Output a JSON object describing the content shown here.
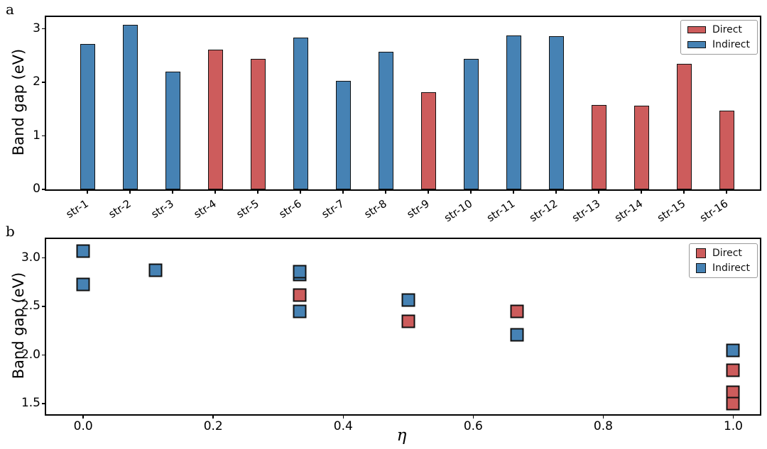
{
  "figure": {
    "panel_letters": {
      "a": "a",
      "b": "b"
    },
    "colors": {
      "direct": "#cd5c5c",
      "indirect": "#4682b4",
      "edge": "#111111"
    },
    "legend": {
      "direct": "Direct",
      "indirect": "Indirect"
    }
  },
  "chart_data": [
    {
      "id": "a",
      "type": "bar",
      "title": "",
      "xlabel": "",
      "ylabel": "Band gap (eV)",
      "categories": [
        "str-1",
        "str-2",
        "str-3",
        "str-4",
        "str-5",
        "str-6",
        "str-7",
        "str-8",
        "str-9",
        "str-10",
        "str-11",
        "str-12",
        "str-13",
        "str-14",
        "str-15",
        "str-16"
      ],
      "values": [
        2.72,
        3.07,
        2.2,
        2.61,
        2.44,
        2.83,
        2.03,
        2.57,
        1.82,
        2.44,
        2.88,
        2.86,
        1.58,
        1.57,
        2.34,
        1.47
      ],
      "bar_types": [
        "Indirect",
        "Indirect",
        "Indirect",
        "Direct",
        "Direct",
        "Indirect",
        "Indirect",
        "Indirect",
        "Direct",
        "Indirect",
        "Indirect",
        "Indirect",
        "Direct",
        "Direct",
        "Direct",
        "Direct"
      ],
      "ylim": [
        0,
        3.22
      ],
      "yticks": [
        0,
        1,
        2,
        3
      ],
      "yticklabels": [
        "0",
        "1",
        "2",
        "3"
      ],
      "grid": false,
      "legend": [
        "Direct",
        "Indirect"
      ],
      "legend_position": "upper right",
      "bar_geom": {
        "first_center": 58,
        "spacing": 60,
        "width": 21
      }
    },
    {
      "id": "b",
      "type": "scatter",
      "title": "",
      "xlabel": "η",
      "ylabel": "Band gap (eV)",
      "xlim": [
        -0.057,
        1.041
      ],
      "ylim": [
        1.39,
        3.195
      ],
      "xticks": [
        0.0,
        0.2,
        0.4,
        0.6,
        0.8,
        1.0
      ],
      "xticklabels": [
        "0.0",
        "0.2",
        "0.4",
        "0.6",
        "0.8",
        "1.0"
      ],
      "yticks": [
        1.5,
        2.0,
        2.5,
        3.0
      ],
      "yticklabels": [
        "1.5",
        "2.0",
        "2.5",
        "3.0"
      ],
      "grid": false,
      "legend": [
        "Direct",
        "Indirect"
      ],
      "legend_position": "upper right",
      "marker": "square",
      "series": [
        {
          "name": "Direct",
          "points": [
            [
              0.333,
              2.62
            ],
            [
              0.5,
              2.35
            ],
            [
              0.667,
              2.45
            ],
            [
              1.0,
              1.84
            ],
            [
              1.0,
              1.62
            ],
            [
              1.0,
              1.5
            ]
          ]
        },
        {
          "name": "Indirect",
          "points": [
            [
              0.0,
              3.07
            ],
            [
              0.0,
              2.73
            ],
            [
              0.111,
              2.87
            ],
            [
              0.333,
              2.83
            ],
            [
              0.333,
              2.86
            ],
            [
              0.333,
              2.45
            ],
            [
              0.5,
              2.57
            ],
            [
              0.667,
              2.21
            ],
            [
              1.0,
              2.05
            ]
          ]
        }
      ]
    }
  ]
}
